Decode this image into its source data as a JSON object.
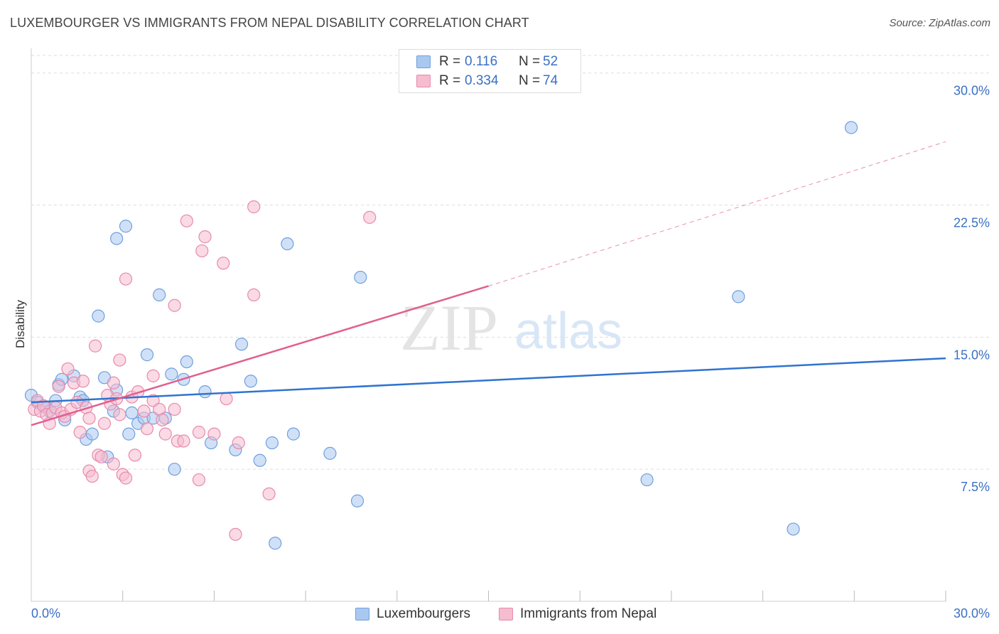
{
  "header": {
    "title": "LUXEMBOURGER VS IMMIGRANTS FROM NEPAL DISABILITY CORRELATION CHART",
    "source": "Source: ZipAtlas.com"
  },
  "watermark": {
    "zip": "ZIP",
    "atlas": "atlas"
  },
  "legend": {
    "rows": [
      {
        "r_label": "R =",
        "r_value": "0.116",
        "n_label": "N =",
        "n_value": "52"
      },
      {
        "r_label": "R =",
        "r_value": "0.334",
        "n_label": "N =",
        "n_value": "74"
      }
    ]
  },
  "bottom_legend": {
    "items": [
      {
        "label": "Luxembourgers"
      },
      {
        "label": "Immigrants from Nepal"
      }
    ]
  },
  "colors": {
    "lux_fill": "#a9c8f0",
    "lux_stroke": "#6f9fde",
    "lux_line": "#2f74cf",
    "nepal_fill": "#f6bcd0",
    "nepal_stroke": "#e78aab",
    "nepal_line": "#e0608e",
    "tick_label": "#3a70c4",
    "grid": "#dddddd"
  },
  "chart_data": {
    "type": "scatter",
    "title": "LUXEMBOURGER VS IMMIGRANTS FROM NEPAL DISABILITY CORRELATION CHART",
    "xlabel": "",
    "ylabel": "Disability",
    "xlim": [
      0,
      30
    ],
    "ylim": [
      0,
      31.4
    ],
    "x_tick_labels": [
      "0.0%",
      "30.0%"
    ],
    "y_ticks": [
      {
        "value": 7.5,
        "label": "7.5%"
      },
      {
        "value": 15.0,
        "label": "15.0%"
      },
      {
        "value": 22.5,
        "label": "22.5%"
      },
      {
        "value": 30.0,
        "label": "30.0%"
      }
    ],
    "grid": "horizontal dashed",
    "legend_position": "top-center",
    "series": [
      {
        "name": "Luxembourgers",
        "trend": {
          "x": [
            0,
            30
          ],
          "y": [
            11.3,
            13.8
          ]
        },
        "points": [
          [
            0.0,
            11.7
          ],
          [
            0.2,
            11.3
          ],
          [
            0.4,
            11.1
          ],
          [
            0.5,
            11.0
          ],
          [
            0.6,
            10.8
          ],
          [
            0.8,
            11.4
          ],
          [
            0.9,
            12.3
          ],
          [
            1.0,
            12.6
          ],
          [
            1.1,
            10.3
          ],
          [
            1.4,
            12.8
          ],
          [
            1.6,
            11.6
          ],
          [
            1.7,
            11.4
          ],
          [
            1.8,
            9.2
          ],
          [
            2.0,
            9.5
          ],
          [
            2.2,
            16.2
          ],
          [
            2.4,
            12.7
          ],
          [
            2.5,
            8.2
          ],
          [
            2.7,
            10.8
          ],
          [
            2.8,
            12.0
          ],
          [
            2.8,
            20.6
          ],
          [
            3.1,
            21.3
          ],
          [
            3.2,
            9.5
          ],
          [
            3.3,
            10.7
          ],
          [
            3.5,
            10.1
          ],
          [
            3.7,
            10.4
          ],
          [
            3.8,
            14.0
          ],
          [
            4.0,
            10.4
          ],
          [
            4.2,
            17.4
          ],
          [
            4.4,
            10.4
          ],
          [
            4.6,
            12.9
          ],
          [
            4.7,
            7.5
          ],
          [
            5.0,
            12.6
          ],
          [
            5.1,
            13.6
          ],
          [
            5.7,
            11.9
          ],
          [
            5.9,
            9.0
          ],
          [
            6.7,
            8.6
          ],
          [
            6.9,
            14.6
          ],
          [
            7.2,
            12.5
          ],
          [
            7.5,
            8.0
          ],
          [
            7.9,
            9.0
          ],
          [
            8.0,
            3.3
          ],
          [
            8.4,
            20.3
          ],
          [
            8.6,
            9.5
          ],
          [
            9.8,
            8.4
          ],
          [
            10.7,
            5.7
          ],
          [
            10.8,
            18.4
          ],
          [
            20.2,
            6.9
          ],
          [
            23.2,
            17.3
          ],
          [
            25.0,
            4.1
          ],
          [
            26.9,
            26.9
          ]
        ]
      },
      {
        "name": "Immigrants from Nepal",
        "trend": {
          "x": [
            0,
            15.0
          ],
          "y": [
            10.0,
            17.9
          ]
        },
        "trend_extension": {
          "x": [
            15.0,
            30
          ],
          "y": [
            17.9,
            26.1
          ]
        },
        "points": [
          [
            0.1,
            10.9
          ],
          [
            0.2,
            11.4
          ],
          [
            0.3,
            10.8
          ],
          [
            0.4,
            11.1
          ],
          [
            0.5,
            10.6
          ],
          [
            0.6,
            10.1
          ],
          [
            0.7,
            10.7
          ],
          [
            0.8,
            11.0
          ],
          [
            0.9,
            12.2
          ],
          [
            1.0,
            10.7
          ],
          [
            1.1,
            10.5
          ],
          [
            1.2,
            13.2
          ],
          [
            1.3,
            10.9
          ],
          [
            1.4,
            12.4
          ],
          [
            1.5,
            11.3
          ],
          [
            1.6,
            9.6
          ],
          [
            1.7,
            12.5
          ],
          [
            1.8,
            11.0
          ],
          [
            1.9,
            10.4
          ],
          [
            1.9,
            7.4
          ],
          [
            2.0,
            7.1
          ],
          [
            2.1,
            14.5
          ],
          [
            2.2,
            8.3
          ],
          [
            2.3,
            8.2
          ],
          [
            2.4,
            10.1
          ],
          [
            2.5,
            11.7
          ],
          [
            2.6,
            11.2
          ],
          [
            2.7,
            7.8
          ],
          [
            2.7,
            12.4
          ],
          [
            2.8,
            11.5
          ],
          [
            2.9,
            13.7
          ],
          [
            2.9,
            10.6
          ],
          [
            3.0,
            7.2
          ],
          [
            3.1,
            7.0
          ],
          [
            3.1,
            18.3
          ],
          [
            3.3,
            11.6
          ],
          [
            3.4,
            8.3
          ],
          [
            3.5,
            11.9
          ],
          [
            3.7,
            10.8
          ],
          [
            3.8,
            9.8
          ],
          [
            4.0,
            11.4
          ],
          [
            4.0,
            12.8
          ],
          [
            4.2,
            10.9
          ],
          [
            4.3,
            10.3
          ],
          [
            4.4,
            9.5
          ],
          [
            4.7,
            16.8
          ],
          [
            4.7,
            10.9
          ],
          [
            4.8,
            9.1
          ],
          [
            5.0,
            9.1
          ],
          [
            5.1,
            21.6
          ],
          [
            5.5,
            9.6
          ],
          [
            5.5,
            6.9
          ],
          [
            5.6,
            19.9
          ],
          [
            5.7,
            20.7
          ],
          [
            6.0,
            9.5
          ],
          [
            6.3,
            19.2
          ],
          [
            6.4,
            11.5
          ],
          [
            6.7,
            3.8
          ],
          [
            6.8,
            9.0
          ],
          [
            7.3,
            17.4
          ],
          [
            7.3,
            22.4
          ],
          [
            7.8,
            6.1
          ],
          [
            11.1,
            21.8
          ]
        ]
      }
    ]
  }
}
